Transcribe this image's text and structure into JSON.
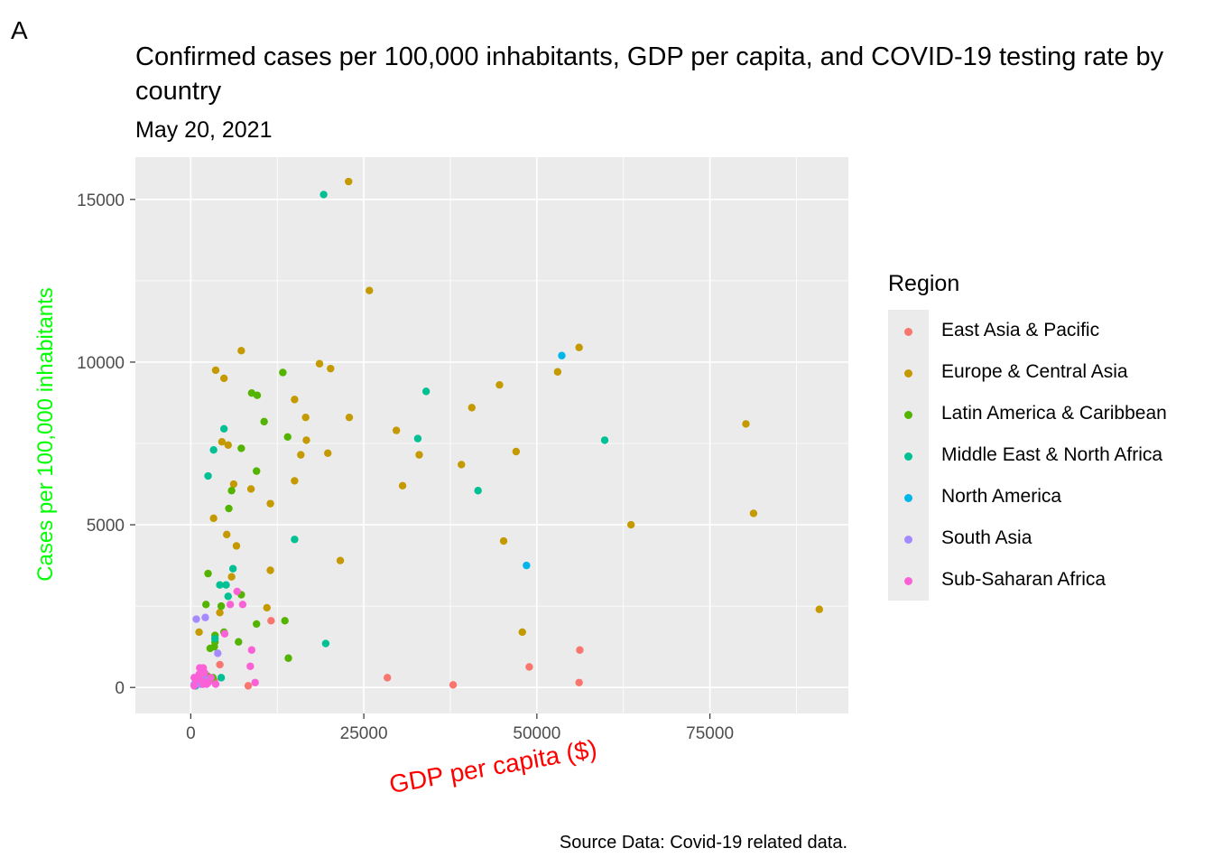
{
  "panel_tag": "A",
  "chart_data": {
    "type": "scatter",
    "title": "Confirmed cases per 100,000 inhabitants, GDP per capita, and COVID-19 testing rate by country",
    "subtitle": "May 20, 2021",
    "xlabel": "GDP per capita ($)",
    "ylabel": "Cases per 100,000 inhabitants",
    "xlim": [
      -8000,
      95000
    ],
    "ylim": [
      -800,
      16300
    ],
    "x_ticks": [
      0,
      25000,
      50000,
      75000
    ],
    "x_tick_labels": [
      "0",
      "25000",
      "50000",
      "75000"
    ],
    "y_ticks": [
      0,
      5000,
      10000,
      15000
    ],
    "y_tick_labels": [
      "0",
      "5000",
      "10000",
      "15000"
    ],
    "grid": true,
    "legend_title": "Region",
    "legend_position": "right",
    "caption": "Source Data: Covid-19 related data.",
    "colors": {
      "xlabel": "#ff0000",
      "ylabel": "#00ff00",
      "panel_bg": "#ebebeb",
      "grid": "#ffffff"
    },
    "series": [
      {
        "name": "East Asia & Pacific",
        "color": "#F8766D",
        "points": [
          [
            11600,
            2050
          ],
          [
            8300,
            50
          ],
          [
            28400,
            300
          ],
          [
            37900,
            80
          ],
          [
            48900,
            630
          ],
          [
            56100,
            150
          ],
          [
            56200,
            1150
          ],
          [
            2000,
            250
          ],
          [
            1500,
            100
          ],
          [
            3400,
            200
          ],
          [
            4200,
            700
          ],
          [
            900,
            100
          ]
        ]
      },
      {
        "name": "Europe & Central Asia",
        "color": "#C49A00",
        "points": [
          [
            22800,
            15550
          ],
          [
            25800,
            12200
          ],
          [
            7300,
            10350
          ],
          [
            3600,
            9750
          ],
          [
            4800,
            9500
          ],
          [
            18600,
            9950
          ],
          [
            20200,
            9800
          ],
          [
            15000,
            8850
          ],
          [
            22900,
            8300
          ],
          [
            16600,
            8300
          ],
          [
            16700,
            7600
          ],
          [
            15900,
            7150
          ],
          [
            19800,
            7200
          ],
          [
            15000,
            6350
          ],
          [
            4500,
            7550
          ],
          [
            5400,
            7450
          ],
          [
            6200,
            6250
          ],
          [
            8700,
            6100
          ],
          [
            11500,
            5650
          ],
          [
            3300,
            5200
          ],
          [
            5200,
            4700
          ],
          [
            6600,
            4350
          ],
          [
            21600,
            3900
          ],
          [
            11500,
            3600
          ],
          [
            5900,
            3400
          ],
          [
            11000,
            2450
          ],
          [
            4200,
            2300
          ],
          [
            1200,
            1700
          ],
          [
            29700,
            7900
          ],
          [
            30600,
            6200
          ],
          [
            33000,
            7150
          ],
          [
            39100,
            6850
          ],
          [
            40600,
            8600
          ],
          [
            44600,
            9300
          ],
          [
            45200,
            4500
          ],
          [
            47000,
            7250
          ],
          [
            47900,
            1700
          ],
          [
            53000,
            9700
          ],
          [
            56100,
            10450
          ],
          [
            63600,
            5000
          ],
          [
            80200,
            8100
          ],
          [
            81300,
            5350
          ],
          [
            90800,
            2400
          ]
        ]
      },
      {
        "name": "Latin America & Caribbean",
        "color": "#53B400",
        "points": [
          [
            8800,
            9050
          ],
          [
            9600,
            8980
          ],
          [
            13300,
            9680
          ],
          [
            10600,
            8170
          ],
          [
            14000,
            7700
          ],
          [
            7300,
            7350
          ],
          [
            9500,
            6650
          ],
          [
            5500,
            5500
          ],
          [
            5900,
            6050
          ],
          [
            2500,
            3500
          ],
          [
            7300,
            2850
          ],
          [
            2200,
            2550
          ],
          [
            3500,
            1600
          ],
          [
            4800,
            1700
          ],
          [
            3500,
            1400
          ],
          [
            6900,
            1400
          ],
          [
            9500,
            1950
          ],
          [
            13600,
            2050
          ],
          [
            14100,
            900
          ],
          [
            4400,
            2500
          ],
          [
            3400,
            1250
          ],
          [
            2800,
            1200
          ],
          [
            2400,
            350
          ],
          [
            3200,
            300
          ],
          [
            1700,
            100
          ]
        ]
      },
      {
        "name": "Middle East & North Africa",
        "color": "#00C094",
        "points": [
          [
            19200,
            15150
          ],
          [
            4800,
            7950
          ],
          [
            3300,
            7300
          ],
          [
            2500,
            6500
          ],
          [
            15000,
            4550
          ],
          [
            6100,
            3650
          ],
          [
            4200,
            3150
          ],
          [
            5100,
            3150
          ],
          [
            5400,
            2800
          ],
          [
            19500,
            1350
          ],
          [
            34000,
            9100
          ],
          [
            32800,
            7650
          ],
          [
            41500,
            6050
          ],
          [
            59800,
            7600
          ],
          [
            4400,
            300
          ],
          [
            3500,
            1500
          ],
          [
            700,
            50
          ]
        ]
      },
      {
        "name": "North America",
        "color": "#00B6EB",
        "points": [
          [
            53600,
            10200
          ],
          [
            48500,
            3750
          ]
        ]
      },
      {
        "name": "South Asia",
        "color": "#A58AFF",
        "points": [
          [
            800,
            2100
          ],
          [
            2100,
            2150
          ],
          [
            3900,
            1050
          ],
          [
            2100,
            250
          ],
          [
            1400,
            100
          ],
          [
            500,
            100
          ]
        ]
      },
      {
        "name": "Sub-Saharan Africa",
        "color": "#FB61D7",
        "points": [
          [
            6700,
            2950
          ],
          [
            7500,
            2550
          ],
          [
            5700,
            2550
          ],
          [
            4900,
            1650
          ],
          [
            8800,
            1150
          ],
          [
            8600,
            650
          ],
          [
            9300,
            150
          ],
          [
            2300,
            100
          ],
          [
            1800,
            600
          ],
          [
            1300,
            600
          ],
          [
            500,
            300
          ],
          [
            800,
            250
          ],
          [
            1600,
            200
          ],
          [
            2500,
            150
          ],
          [
            1200,
            400
          ],
          [
            2900,
            300
          ],
          [
            2000,
            450
          ],
          [
            500,
            50
          ],
          [
            1800,
            100
          ],
          [
            3600,
            100
          ]
        ]
      }
    ]
  }
}
